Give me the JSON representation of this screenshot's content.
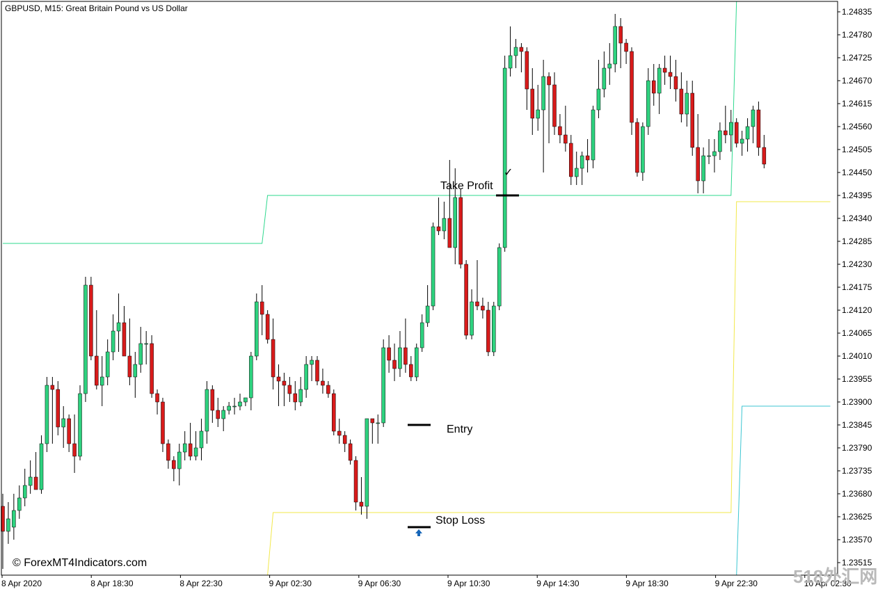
{
  "chart_data": {
    "type": "candlestick",
    "title": "GBPUSD, M15:  Great Britain Pound vs US Dollar",
    "y_ticks": [
      "1.24835",
      "1.24780",
      "1.24725",
      "1.24670",
      "1.24615",
      "1.24560",
      "1.24505",
      "1.24450",
      "1.24395",
      "1.24340",
      "1.24285",
      "1.24230",
      "1.24175",
      "1.24120",
      "1.24065",
      "1.24010",
      "1.23955",
      "1.23900",
      "1.23845",
      "1.23790",
      "1.23735",
      "1.23680",
      "1.23625",
      "1.23570",
      "1.23515"
    ],
    "x_ticks": [
      "8 Apr 2020",
      "8 Apr 18:30",
      "8 Apr 22:30",
      "9 Apr 02:30",
      "9 Apr 06:30",
      "9 Apr 10:30",
      "9 Apr 14:30",
      "9 Apr 18:30",
      "9 Apr 22:30",
      "10 Apr 02:30"
    ],
    "ylim": [
      1.23485,
      1.2486
    ],
    "bull_color": "#2ed27f",
    "bear_color": "#d81b1b",
    "candles": [
      [
        1.2365,
        1.2368,
        1.235,
        1.2359
      ],
      [
        1.2359,
        1.2366,
        1.2356,
        1.2362
      ],
      [
        1.236,
        1.2368,
        1.2357,
        1.2364
      ],
      [
        1.2364,
        1.237,
        1.2362,
        1.2367
      ],
      [
        1.2367,
        1.2374,
        1.2365,
        1.237
      ],
      [
        1.237,
        1.2376,
        1.2368,
        1.2372
      ],
      [
        1.2372,
        1.2378,
        1.237,
        1.2369
      ],
      [
        1.2369,
        1.2382,
        1.2368,
        1.238
      ],
      [
        1.238,
        1.2396,
        1.2378,
        1.2394
      ],
      [
        1.2394,
        1.2396,
        1.238,
        1.2393
      ],
      [
        1.2393,
        1.2395,
        1.2382,
        1.2384
      ],
      [
        1.2384,
        1.2389,
        1.2379,
        1.2386
      ],
      [
        1.2386,
        1.2387,
        1.2378,
        1.238
      ],
      [
        1.238,
        1.2387,
        1.2373,
        1.2377
      ],
      [
        1.2377,
        1.2394,
        1.2376,
        1.2392
      ],
      [
        1.2392,
        1.242,
        1.239,
        1.2418
      ],
      [
        1.2418,
        1.242,
        1.24,
        1.2401
      ],
      [
        1.2401,
        1.2412,
        1.2393,
        1.2394
      ],
      [
        1.2394,
        1.2401,
        1.2389,
        1.2396
      ],
      [
        1.2396,
        1.2405,
        1.2394,
        1.2402
      ],
      [
        1.2402,
        1.2411,
        1.24,
        1.2407
      ],
      [
        1.2407,
        1.2416,
        1.2402,
        1.2409
      ],
      [
        1.2409,
        1.2413,
        1.2401,
        1.2401
      ],
      [
        1.2401,
        1.241,
        1.2394,
        1.2396
      ],
      [
        1.2396,
        1.2402,
        1.2391,
        1.2399
      ],
      [
        1.2399,
        1.2408,
        1.2397,
        1.2404
      ],
      [
        1.2404,
        1.2407,
        1.2399,
        1.2404
      ],
      [
        1.2404,
        1.2406,
        1.2391,
        1.2392
      ],
      [
        1.2392,
        1.2393,
        1.2387,
        1.239
      ],
      [
        1.239,
        1.2391,
        1.2378,
        1.238
      ],
      [
        1.238,
        1.2381,
        1.2374,
        1.2376
      ],
      [
        1.2376,
        1.2377,
        1.2371,
        1.2374
      ],
      [
        1.2374,
        1.238,
        1.237,
        1.2378
      ],
      [
        1.2378,
        1.2383,
        1.2376,
        1.238
      ],
      [
        1.238,
        1.2385,
        1.2376,
        1.2377
      ],
      [
        1.2377,
        1.2383,
        1.2376,
        1.2379
      ],
      [
        1.2379,
        1.2386,
        1.2376,
        1.2383
      ],
      [
        1.2383,
        1.2395,
        1.238,
        1.2393
      ],
      [
        1.2393,
        1.2394,
        1.2385,
        1.2388
      ],
      [
        1.2388,
        1.2391,
        1.2384,
        1.2386
      ],
      [
        1.2386,
        1.2389,
        1.2383,
        1.2388
      ],
      [
        1.2388,
        1.239,
        1.2387,
        1.2389
      ],
      [
        1.2389,
        1.2391,
        1.2387,
        1.2389
      ],
      [
        1.2389,
        1.2392,
        1.2388,
        1.239
      ],
      [
        1.239,
        1.2391,
        1.2389,
        1.2391
      ],
      [
        1.2391,
        1.2402,
        1.2388,
        1.2401
      ],
      [
        1.2401,
        1.2416,
        1.24,
        1.2414
      ],
      [
        1.2414,
        1.2418,
        1.2406,
        1.2411
      ],
      [
        1.2411,
        1.2412,
        1.2404,
        1.2405
      ],
      [
        1.2405,
        1.241,
        1.2393,
        1.2396
      ],
      [
        1.2396,
        1.2399,
        1.2389,
        1.2395
      ],
      [
        1.2395,
        1.2397,
        1.2389,
        1.2394
      ],
      [
        1.2394,
        1.2396,
        1.239,
        1.2392
      ],
      [
        1.2392,
        1.2395,
        1.2388,
        1.239
      ],
      [
        1.239,
        1.2396,
        1.2389,
        1.2393
      ],
      [
        1.2393,
        1.2401,
        1.2391,
        1.2399
      ],
      [
        1.2399,
        1.2401,
        1.2395,
        1.24
      ],
      [
        1.24,
        1.2401,
        1.2394,
        1.2395
      ],
      [
        1.2395,
        1.2398,
        1.2392,
        1.2394
      ],
      [
        1.2394,
        1.2395,
        1.2391,
        1.2392
      ],
      [
        1.2392,
        1.2393,
        1.2382,
        1.2383
      ],
      [
        1.2383,
        1.2386,
        1.238,
        1.2382
      ],
      [
        1.2382,
        1.2383,
        1.2378,
        1.238
      ],
      [
        1.238,
        1.2381,
        1.2375,
        1.2376
      ],
      [
        1.2376,
        1.2377,
        1.2364,
        1.2366
      ],
      [
        1.2366,
        1.2372,
        1.2363,
        1.2365
      ],
      [
        1.2365,
        1.2385,
        1.2362,
        1.2386
      ],
      [
        1.2386,
        1.2386,
        1.238,
        1.2385
      ],
      [
        1.2385,
        1.2387,
        1.238,
        1.2385
      ],
      [
        1.2385,
        1.2405,
        1.2384,
        1.2403
      ],
      [
        1.2403,
        1.2406,
        1.2397,
        1.24
      ],
      [
        1.24,
        1.2404,
        1.2395,
        1.2398
      ],
      [
        1.2398,
        1.2407,
        1.2396,
        1.2403
      ],
      [
        1.2403,
        1.241,
        1.2397,
        1.2399
      ],
      [
        1.2399,
        1.2401,
        1.2395,
        1.2396
      ],
      [
        1.2396,
        1.2404,
        1.2395,
        1.2403
      ],
      [
        1.2403,
        1.2411,
        1.2402,
        1.2409
      ],
      [
        1.2409,
        1.2418,
        1.2408,
        1.2413
      ],
      [
        1.2413,
        1.2433,
        1.2412,
        1.2432
      ],
      [
        1.2432,
        1.2439,
        1.243,
        1.2431
      ],
      [
        1.2431,
        1.2438,
        1.2429,
        1.2434
      ],
      [
        1.2434,
        1.2448,
        1.2428,
        1.2427
      ],
      [
        1.2427,
        1.2446,
        1.2423,
        1.2439
      ],
      [
        1.2439,
        1.2441,
        1.2422,
        1.2423
      ],
      [
        1.2423,
        1.2424,
        1.2405,
        1.2406
      ],
      [
        1.2406,
        1.2417,
        1.2405,
        1.2414
      ],
      [
        1.2414,
        1.2424,
        1.2412,
        1.2413
      ],
      [
        1.2413,
        1.2415,
        1.241,
        1.2412
      ],
      [
        1.2412,
        1.2414,
        1.2401,
        1.2402
      ],
      [
        1.2402,
        1.2414,
        1.2401,
        1.2413
      ],
      [
        1.2413,
        1.2428,
        1.2412,
        1.2427
      ],
      [
        1.2427,
        1.2473,
        1.2426,
        1.247
      ],
      [
        1.247,
        1.248,
        1.2468,
        1.2473
      ],
      [
        1.2473,
        1.2477,
        1.247,
        1.2475
      ],
      [
        1.2475,
        1.2476,
        1.2469,
        1.2474
      ],
      [
        1.2474,
        1.2475,
        1.246,
        1.2465
      ],
      [
        1.2465,
        1.247,
        1.2454,
        1.2458
      ],
      [
        1.2458,
        1.2466,
        1.2455,
        1.246
      ],
      [
        1.246,
        1.2472,
        1.2445,
        1.2468
      ],
      [
        1.2468,
        1.2469,
        1.2452,
        1.2466
      ],
      [
        1.2466,
        1.2469,
        1.2454,
        1.2456
      ],
      [
        1.2456,
        1.2459,
        1.2452,
        1.2454
      ],
      [
        1.2454,
        1.2461,
        1.245,
        1.2452
      ],
      [
        1.2452,
        1.2454,
        1.2442,
        1.2444
      ],
      [
        1.2444,
        1.245,
        1.2442,
        1.2446
      ],
      [
        1.2446,
        1.245,
        1.2442,
        1.2449
      ],
      [
        1.2449,
        1.2453,
        1.2445,
        1.2448
      ],
      [
        1.2448,
        1.2461,
        1.2446,
        1.246
      ],
      [
        1.246,
        1.2472,
        1.2458,
        1.2465
      ],
      [
        1.2465,
        1.2474,
        1.2463,
        1.247
      ],
      [
        1.247,
        1.2476,
        1.2466,
        1.2471
      ],
      [
        1.2471,
        1.2483,
        1.2469,
        1.248
      ],
      [
        1.248,
        1.2482,
        1.247,
        1.2476
      ],
      [
        1.2476,
        1.2477,
        1.2471,
        1.2474
      ],
      [
        1.2474,
        1.2475,
        1.2454,
        1.2457
      ],
      [
        1.2457,
        1.2458,
        1.2444,
        1.2445
      ],
      [
        1.2445,
        1.2457,
        1.2443,
        1.2456
      ],
      [
        1.2456,
        1.247,
        1.2454,
        1.2467
      ],
      [
        1.2467,
        1.2471,
        1.2461,
        1.2464
      ],
      [
        1.2464,
        1.2471,
        1.2459,
        1.247
      ],
      [
        1.247,
        1.2473,
        1.2466,
        1.2469
      ],
      [
        1.2469,
        1.2473,
        1.2465,
        1.2468
      ],
      [
        1.2468,
        1.2472,
        1.2462,
        1.2465
      ],
      [
        1.2465,
        1.2469,
        1.2457,
        1.2459
      ],
      [
        1.2459,
        1.2467,
        1.2456,
        1.2464
      ],
      [
        1.2464,
        1.2467,
        1.2449,
        1.2451
      ],
      [
        1.2451,
        1.2459,
        1.244,
        1.2443
      ],
      [
        1.2443,
        1.2451,
        1.244,
        1.2449
      ],
      [
        1.2449,
        1.2453,
        1.2447,
        1.2449
      ],
      [
        1.2449,
        1.2453,
        1.2445,
        1.245
      ],
      [
        1.245,
        1.2457,
        1.2448,
        1.2455
      ],
      [
        1.2455,
        1.2461,
        1.2452,
        1.2454
      ],
      [
        1.2454,
        1.246,
        1.245,
        1.2457
      ],
      [
        1.2457,
        1.2458,
        1.2451,
        1.2452
      ],
      [
        1.2452,
        1.2455,
        1.2449,
        1.2453
      ],
      [
        1.2453,
        1.2458,
        1.245,
        1.2456
      ],
      [
        1.2456,
        1.2461,
        1.2452,
        1.246
      ],
      [
        1.246,
        1.2462,
        1.2449,
        1.2451
      ],
      [
        1.2451,
        1.2454,
        1.2446,
        1.2447
      ]
    ],
    "line_colors": {
      "upper": "#2ed88e",
      "lower": "#f2e84a",
      "cyan": "#3cc6d2"
    },
    "upper_line": [
      [
        0,
        1.2428
      ],
      [
        47,
        1.2428
      ],
      [
        48,
        1.24395
      ],
      [
        132,
        1.24395
      ],
      [
        133,
        1.2486
      ]
    ],
    "lower_line": [
      [
        48,
        1.23485
      ],
      [
        49,
        1.23635
      ],
      [
        132,
        1.23635
      ],
      [
        133,
        1.2438
      ],
      [
        150,
        1.2438
      ]
    ],
    "cyan_line": [
      [
        133,
        1.23485
      ],
      [
        134,
        1.2389
      ],
      [
        150,
        1.2389
      ]
    ],
    "annotations": {
      "take_profit": "Take Profit",
      "entry": "Entry",
      "stop_loss": "Stop Loss",
      "check": "✓",
      "take_profit_level": 1.24395,
      "entry_level": 1.23845,
      "stop_loss_level": 1.236
    },
    "copyright": "© ForexMT4Indicators.com",
    "watermark": "518外汇网"
  }
}
